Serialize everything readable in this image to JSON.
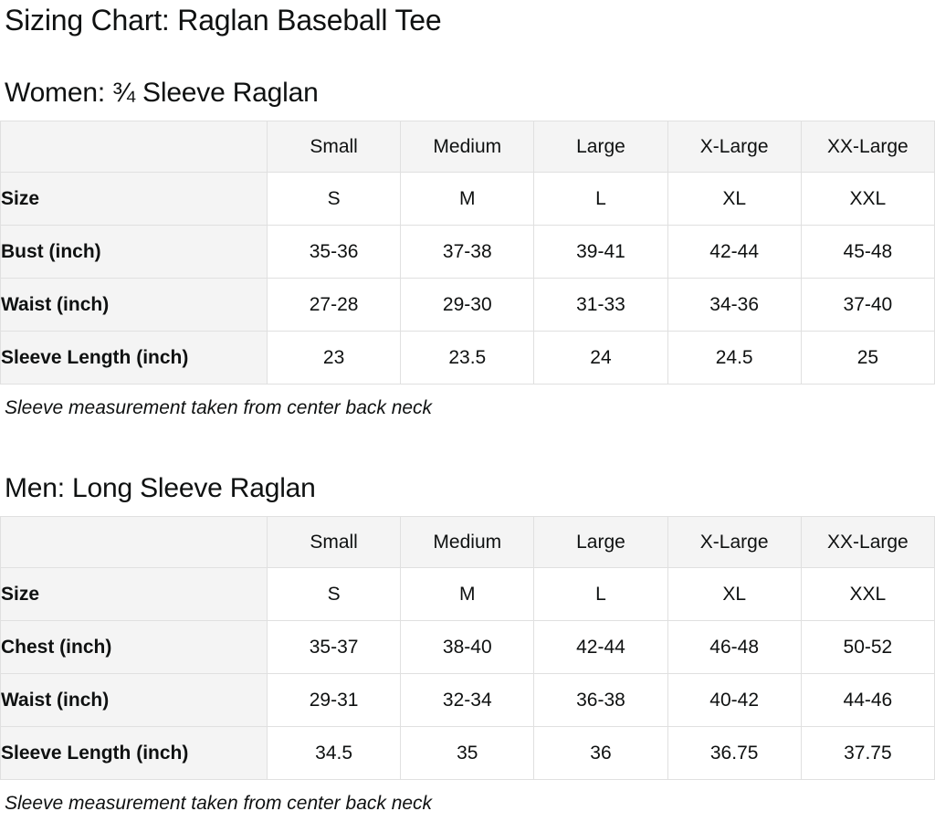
{
  "page": {
    "title": "Sizing Chart: Raglan Baseball Tee"
  },
  "theme": {
    "text": "#0f1111",
    "header_bg": "#f4f4f4",
    "border": "#e0e0e0"
  },
  "sections": [
    {
      "heading": "Women: ¾ Sleeve Raglan",
      "columns": [
        "",
        "Small",
        "Medium",
        "Large",
        "X-Large",
        "XX-Large"
      ],
      "rows": [
        {
          "label": "Size",
          "values": [
            "S",
            "M",
            "L",
            "XL",
            "XXL"
          ]
        },
        {
          "label": "Bust (inch)",
          "values": [
            "35-36",
            "37-38",
            "39-41",
            "42-44",
            "45-48"
          ]
        },
        {
          "label": "Waist (inch)",
          "values": [
            "27-28",
            "29-30",
            "31-33",
            "34-36",
            "37-40"
          ]
        },
        {
          "label": "Sleeve Length (inch)",
          "values": [
            "23",
            "23.5",
            "24",
            "24.5",
            "25"
          ]
        }
      ],
      "footnote": "Sleeve measurement taken from center back neck"
    },
    {
      "heading": "Men: Long Sleeve Raglan",
      "columns": [
        "",
        "Small",
        "Medium",
        "Large",
        "X-Large",
        "XX-Large"
      ],
      "rows": [
        {
          "label": "Size",
          "values": [
            "S",
            "M",
            "L",
            "XL",
            "XXL"
          ]
        },
        {
          "label": "Chest (inch)",
          "values": [
            "35-37",
            "38-40",
            "42-44",
            "46-48",
            "50-52"
          ]
        },
        {
          "label": "Waist (inch)",
          "values": [
            "29-31",
            "32-34",
            "36-38",
            "40-42",
            "44-46"
          ]
        },
        {
          "label": "Sleeve Length (inch)",
          "values": [
            "34.5",
            "35",
            "36",
            "36.75",
            "37.75"
          ]
        }
      ],
      "footnote": "Sleeve measurement taken from center back neck"
    }
  ]
}
